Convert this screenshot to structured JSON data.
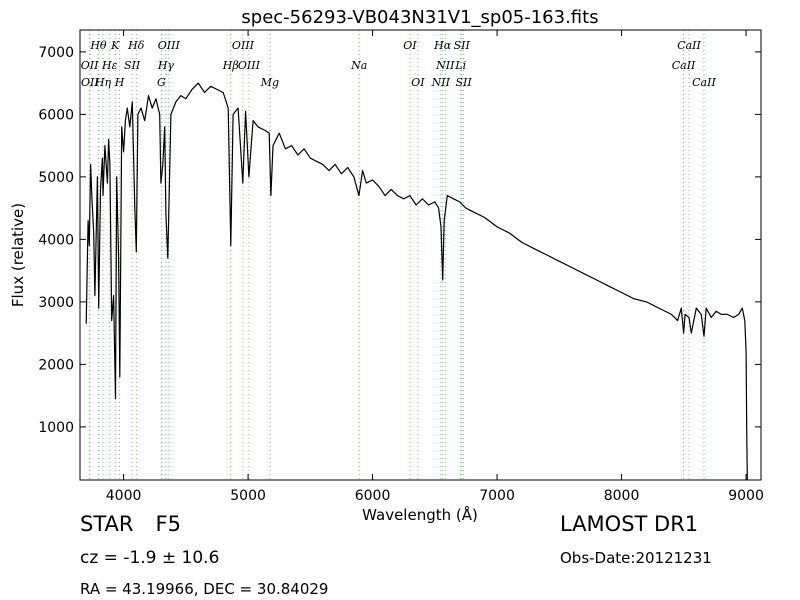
{
  "chart_data": {
    "type": "line",
    "title": "spec-56293-VB043N31V1_sp05-163.fits",
    "xlabel": "Wavelength (Å)",
    "ylabel": "Flux (relative)",
    "xlim": [
      3650,
      9120
    ],
    "ylim": [
      150,
      7350
    ],
    "xticks": [
      4000,
      5000,
      6000,
      7000,
      8000,
      9000
    ],
    "yticks": [
      1000,
      2000,
      3000,
      4000,
      5000,
      6000,
      7000
    ],
    "grid": false,
    "line_color": "#000000",
    "marker_color": "#66cc66",
    "series": [
      {
        "x": [
          3700,
          3715,
          3725,
          3735,
          3745,
          3760,
          3770,
          3790,
          3800,
          3815,
          3830,
          3835,
          3850,
          3870,
          3880,
          3890,
          3905,
          3920,
          3935,
          3945,
          3960,
          3970,
          3985,
          4000,
          4015,
          4030,
          4050,
          4070,
          4090,
          4102,
          4115,
          4140,
          4170,
          4200,
          4230,
          4260,
          4290,
          4300,
          4315,
          4330,
          4340,
          4355,
          4380,
          4420,
          4460,
          4500,
          4550,
          4600,
          4650,
          4700,
          4750,
          4800,
          4840,
          4861,
          4880,
          4920,
          4958,
          4980,
          5007,
          5040,
          5080,
          5130,
          5170,
          5183,
          5200,
          5250,
          5300,
          5350,
          5400,
          5450,
          5500,
          5550,
          5600,
          5650,
          5700,
          5750,
          5800,
          5850,
          5890,
          5920,
          5950,
          6000,
          6050,
          6100,
          6150,
          6200,
          6250,
          6300,
          6350,
          6400,
          6450,
          6500,
          6530,
          6550,
          6563,
          6575,
          6600,
          6650,
          6700,
          6750,
          6800,
          6900,
          7000,
          7100,
          7200,
          7300,
          7400,
          7500,
          7600,
          7700,
          7800,
          7900,
          8000,
          8100,
          8200,
          8300,
          8400,
          8450,
          8480,
          8498,
          8510,
          8542,
          8560,
          8600,
          8640,
          8662,
          8680,
          8720,
          8760,
          8800,
          8850,
          8900,
          8940,
          8970,
          8990,
          9000,
          9005,
          9010
        ],
        "y": [
          2650,
          4300,
          3900,
          5200,
          4700,
          4100,
          3100,
          5000,
          2900,
          4800,
          5300,
          4700,
          5500,
          4900,
          5600,
          5200,
          2700,
          3100,
          1450,
          5000,
          3700,
          1800,
          5800,
          5400,
          5900,
          6100,
          5800,
          6200,
          4500,
          3800,
          6000,
          6100,
          5900,
          6300,
          6100,
          6250,
          6000,
          4900,
          5200,
          5800,
          4400,
          3700,
          6000,
          6200,
          6300,
          6250,
          6400,
          6500,
          6350,
          6450,
          6400,
          6350,
          6100,
          3900,
          6000,
          6100,
          4900,
          6050,
          5000,
          5900,
          5800,
          5750,
          5700,
          4700,
          5500,
          5700,
          5450,
          5500,
          5350,
          5450,
          5300,
          5250,
          5200,
          5100,
          5200,
          5050,
          5150,
          5000,
          4700,
          5100,
          4900,
          4950,
          4850,
          4700,
          4800,
          4700,
          4650,
          4700,
          4550,
          4650,
          4550,
          4600,
          4500,
          4200,
          3350,
          4300,
          4700,
          4650,
          4600,
          4500,
          4450,
          4350,
          4200,
          4100,
          3950,
          3850,
          3750,
          3650,
          3550,
          3450,
          3350,
          3250,
          3150,
          3050,
          3000,
          2900,
          2800,
          2700,
          2900,
          2500,
          2800,
          2750,
          2500,
          2900,
          2800,
          2450,
          2900,
          2750,
          2850,
          2800,
          2800,
          2750,
          2800,
          2900,
          2700,
          2200,
          1000,
          150
        ]
      }
    ],
    "lines_top": [
      {
        "label": "Hθ",
        "x": 3798
      },
      {
        "label": "K",
        "x": 3933
      },
      {
        "label": "Hδ",
        "x": 4102
      },
      {
        "label": "OIII",
        "x": 4363
      },
      {
        "label": "OIII",
        "x": 4959
      },
      {
        "label": "OI",
        "x": 6300
      },
      {
        "label": "Hα",
        "x": 6563
      },
      {
        "label": "SII",
        "x": 6716
      },
      {
        "label": "CaII",
        "x": 8542
      }
    ],
    "lines_mid": [
      {
        "label": "OII",
        "x": 3727
      },
      {
        "label": "Hε",
        "x": 3889
      },
      {
        "label": "SII",
        "x": 4069
      },
      {
        "label": "Hγ",
        "x": 4340
      },
      {
        "label": "Hβ",
        "x": 4861
      },
      {
        "label": "OIII",
        "x": 5007
      },
      {
        "label": "Na",
        "x": 5893
      },
      {
        "label": "NII",
        "x": 6584
      },
      {
        "label": "Li",
        "x": 6708
      },
      {
        "label": "CaII",
        "x": 8498
      }
    ],
    "lines_low": [
      {
        "label": "OII",
        "x": 3729
      },
      {
        "label": "Hη",
        "x": 3835
      },
      {
        "label": "H",
        "x": 3968
      },
      {
        "label": "G",
        "x": 4304
      },
      {
        "label": "Mg",
        "x": 5175
      },
      {
        "label": "OI",
        "x": 6364
      },
      {
        "label": "NII",
        "x": 6548
      },
      {
        "label": "SII",
        "x": 6731
      },
      {
        "label": "CaII",
        "x": 8662
      }
    ]
  },
  "info": {
    "class": "STAR",
    "subclass": "F5",
    "survey": "LAMOST DR1",
    "cz": "cz = -1.9 ± 10.6",
    "obs_date": "Obs-Date:20121231",
    "radec": "RA = 43.19966, DEC = 30.84029"
  }
}
